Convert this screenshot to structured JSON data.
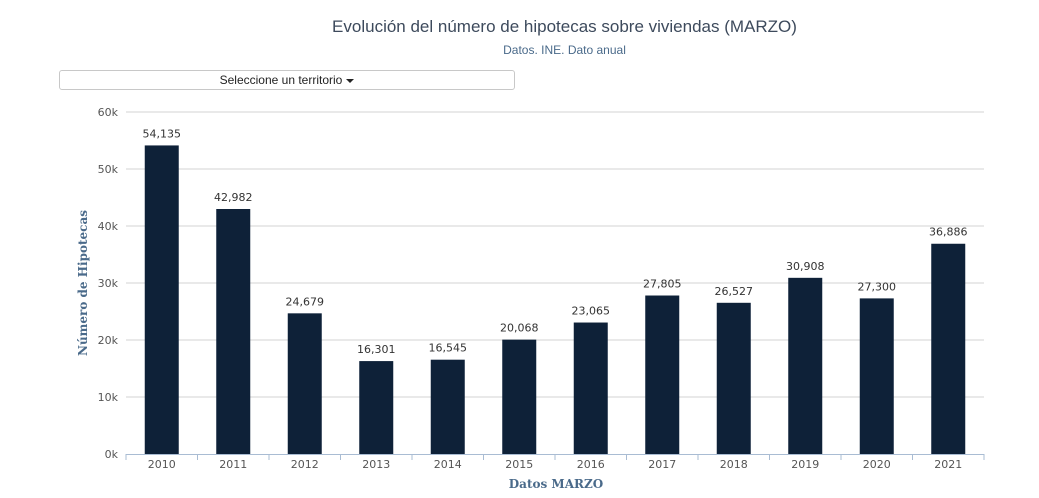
{
  "header": {
    "title": "Evolución del número de hipotecas sobre viviendas (MARZO)",
    "subtitle": "Datos. INE. Dato anual"
  },
  "selector": {
    "label": "Seleccione un territorio"
  },
  "chart_data": {
    "type": "bar",
    "categories": [
      "2010",
      "2011",
      "2012",
      "2013",
      "2014",
      "2015",
      "2016",
      "2017",
      "2018",
      "2019",
      "2020",
      "2021"
    ],
    "values": [
      54135,
      42982,
      24679,
      16301,
      16545,
      20068,
      23065,
      27805,
      26527,
      30908,
      27300,
      36886
    ],
    "data_labels": [
      "54,135",
      "42,982",
      "24,679",
      "16,301",
      "16,545",
      "20,068",
      "23,065",
      "27,805",
      "26,527",
      "30,908",
      "27,300",
      "36,886"
    ],
    "title": "Evolución del número de hipotecas sobre viviendas (MARZO)",
    "subtitle": "Datos. INE. Dato anual",
    "xlabel": "Datos MARZO",
    "ylabel": "Número de Hipotecas",
    "ylim": [
      0,
      60000
    ],
    "yticks": [
      0,
      10000,
      20000,
      30000,
      40000,
      50000,
      60000
    ],
    "ytick_labels": [
      "0k",
      "10k",
      "20k",
      "30k",
      "40k",
      "50k",
      "60k"
    ],
    "grid": true,
    "bar_color": "#0e2138"
  }
}
